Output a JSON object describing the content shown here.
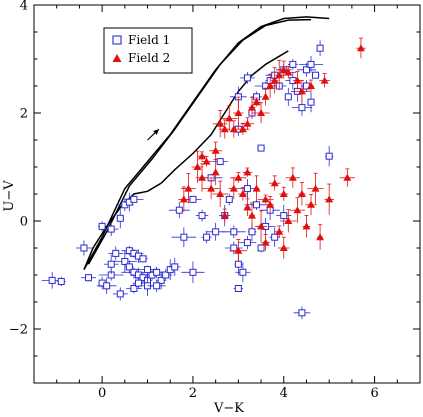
{
  "chart_data": {
    "type": "scatter",
    "title": "",
    "xlabel": "V−K",
    "ylabel": "U−V",
    "xlim": [
      -1.5,
      7
    ],
    "ylim": [
      -3,
      4
    ],
    "x_ticks": [
      0,
      2,
      4,
      6
    ],
    "y_ticks": [
      -2,
      0,
      2,
      4
    ],
    "x_tick_labels": [
      "0",
      "2",
      "4",
      "6"
    ],
    "y_tick_labels": [
      "−2",
      "0",
      "2",
      "4"
    ],
    "legend_position": "top-left",
    "colors": {
      "field1": "#2b2bd6",
      "field2": "#e01010",
      "tracks": "#000000"
    },
    "series": [
      {
        "name": "Field 1",
        "marker": "open-square",
        "color": "#2b2bd6",
        "points": [
          [
            -0.4,
            -0.5
          ],
          [
            0.0,
            -0.1
          ],
          [
            0.2,
            -0.15
          ],
          [
            0.4,
            0.05
          ],
          [
            0.5,
            0.3
          ],
          [
            0.6,
            0.35
          ],
          [
            0.7,
            0.4
          ],
          [
            0.6,
            -0.55
          ],
          [
            0.7,
            -0.6
          ],
          [
            0.8,
            -0.65
          ],
          [
            0.9,
            -0.7
          ],
          [
            0.5,
            -0.75
          ],
          [
            0.6,
            -0.85
          ],
          [
            0.7,
            -0.95
          ],
          [
            0.8,
            -1.0
          ],
          [
            0.9,
            -1.05
          ],
          [
            1.0,
            -1.1
          ],
          [
            1.1,
            -1.0
          ],
          [
            1.2,
            -0.95
          ],
          [
            1.3,
            -1.1
          ],
          [
            1.4,
            -1.0
          ],
          [
            1.5,
            -0.9
          ],
          [
            1.0,
            -1.2
          ],
          [
            0.7,
            -1.25
          ],
          [
            1.2,
            -1.2
          ],
          [
            -1.1,
            -1.1
          ],
          [
            -0.9,
            -1.12
          ],
          [
            -0.3,
            -1.05
          ],
          [
            0.0,
            -1.15
          ],
          [
            0.1,
            -1.2
          ],
          [
            0.2,
            -1.0
          ],
          [
            0.3,
            -0.6
          ],
          [
            0.2,
            -0.8
          ],
          [
            0.4,
            -1.35
          ],
          [
            0.8,
            -1.15
          ],
          [
            1.0,
            -0.9
          ],
          [
            1.6,
            -0.85
          ],
          [
            2.0,
            -0.95
          ],
          [
            1.8,
            -0.3
          ],
          [
            1.7,
            0.2
          ],
          [
            2.0,
            0.4
          ],
          [
            2.2,
            0.1
          ],
          [
            2.3,
            -0.3
          ],
          [
            2.5,
            -0.2
          ],
          [
            2.7,
            0.1
          ],
          [
            2.8,
            0.4
          ],
          [
            2.9,
            -0.5
          ],
          [
            3.0,
            -0.8
          ],
          [
            3.1,
            -0.95
          ],
          [
            3.2,
            -0.4
          ],
          [
            3.3,
            -0.2
          ],
          [
            3.4,
            0.3
          ],
          [
            3.5,
            -0.5
          ],
          [
            3.6,
            -0.1
          ],
          [
            3.7,
            0.2
          ],
          [
            3.8,
            -0.3
          ],
          [
            3.0,
            -1.25
          ],
          [
            3.5,
            1.35
          ],
          [
            3.2,
            0.6
          ],
          [
            2.4,
            0.8
          ],
          [
            2.6,
            1.1
          ],
          [
            3.0,
            1.7
          ],
          [
            3.3,
            2.0
          ],
          [
            3.4,
            2.3
          ],
          [
            3.6,
            2.5
          ],
          [
            3.7,
            2.6
          ],
          [
            3.8,
            2.7
          ],
          [
            3.9,
            2.5
          ],
          [
            4.0,
            2.8
          ],
          [
            4.1,
            2.3
          ],
          [
            4.2,
            2.6
          ],
          [
            4.3,
            2.4
          ],
          [
            4.4,
            2.1
          ],
          [
            4.5,
            2.5
          ],
          [
            4.6,
            2.2
          ],
          [
            4.7,
            2.7
          ],
          [
            4.2,
            2.9
          ],
          [
            4.8,
            3.2
          ],
          [
            3.2,
            2.65
          ],
          [
            3.0,
            2.3
          ],
          [
            4.4,
            -1.7
          ],
          [
            5.0,
            1.2
          ],
          [
            4.5,
            2.8
          ],
          [
            4.6,
            2.9
          ],
          [
            4.0,
            0.1
          ],
          [
            2.9,
            -0.2
          ]
        ]
      },
      {
        "name": "Field 2",
        "marker": "filled-triangle",
        "color": "#e01010",
        "points": [
          [
            1.8,
            0.4
          ],
          [
            1.9,
            0.6
          ],
          [
            2.1,
            1.0
          ],
          [
            2.2,
            0.8
          ],
          [
            2.3,
            1.1
          ],
          [
            2.4,
            0.6
          ],
          [
            2.5,
            1.3
          ],
          [
            2.6,
            1.8
          ],
          [
            2.7,
            1.7
          ],
          [
            2.8,
            1.9
          ],
          [
            2.9,
            1.7
          ],
          [
            3.0,
            2.0
          ],
          [
            3.1,
            1.7
          ],
          [
            3.2,
            1.8
          ],
          [
            3.3,
            2.1
          ],
          [
            3.4,
            2.2
          ],
          [
            3.5,
            2.0
          ],
          [
            3.6,
            2.3
          ],
          [
            3.7,
            2.5
          ],
          [
            3.8,
            2.6
          ],
          [
            3.9,
            2.7
          ],
          [
            4.0,
            2.8
          ],
          [
            4.1,
            2.75
          ],
          [
            4.3,
            2.6
          ],
          [
            4.4,
            2.4
          ],
          [
            4.6,
            2.5
          ],
          [
            4.9,
            2.6
          ],
          [
            5.7,
            3.2
          ],
          [
            2.2,
            1.2
          ],
          [
            2.5,
            0.9
          ],
          [
            2.9,
            0.6
          ],
          [
            3.0,
            0.8
          ],
          [
            3.1,
            0.5
          ],
          [
            3.2,
            0.9
          ],
          [
            3.4,
            0.6
          ],
          [
            3.6,
            0.4
          ],
          [
            3.8,
            0.7
          ],
          [
            4.0,
            0.5
          ],
          [
            4.2,
            0.8
          ],
          [
            4.4,
            0.5
          ],
          [
            4.7,
            0.6
          ],
          [
            5.0,
            0.4
          ],
          [
            5.4,
            0.8
          ],
          [
            2.7,
            0.1
          ],
          [
            3.3,
            0.1
          ],
          [
            3.5,
            -0.1
          ],
          [
            3.7,
            0.3
          ],
          [
            3.9,
            -0.2
          ],
          [
            4.1,
            0.0
          ],
          [
            4.3,
            0.2
          ],
          [
            4.5,
            -0.1
          ],
          [
            4.8,
            -0.3
          ],
          [
            3.0,
            -0.55
          ],
          [
            3.6,
            -0.4
          ],
          [
            4.0,
            -0.5
          ],
          [
            3.2,
            0.25
          ],
          [
            2.6,
            0.5
          ],
          [
            4.6,
            0.3
          ]
        ]
      }
    ],
    "tracks": [
      [
        [
          -0.4,
          -0.9
        ],
        [
          -0.2,
          -0.5
        ],
        [
          0.1,
          -0.1
        ],
        [
          0.4,
          0.25
        ],
        [
          0.7,
          0.5
        ],
        [
          1.0,
          0.55
        ],
        [
          1.3,
          0.7
        ],
        [
          1.6,
          0.95
        ],
        [
          2.0,
          1.25
        ],
        [
          2.4,
          1.6
        ],
        [
          2.7,
          2.0
        ],
        [
          3.0,
          2.4
        ],
        [
          3.3,
          2.7
        ],
        [
          3.6,
          2.9
        ],
        [
          3.9,
          3.05
        ],
        [
          4.1,
          3.15
        ]
      ],
      [
        [
          -0.4,
          -0.9
        ],
        [
          0.0,
          -0.3
        ],
        [
          0.5,
          0.6
        ],
        [
          1.0,
          1.1
        ],
        [
          1.5,
          1.6
        ],
        [
          2.0,
          2.2
        ],
        [
          2.5,
          2.8
        ],
        [
          3.0,
          3.3
        ],
        [
          3.5,
          3.6
        ],
        [
          4.0,
          3.75
        ],
        [
          4.5,
          3.78
        ],
        [
          5.0,
          3.75
        ]
      ],
      [
        [
          -0.3,
          -0.8
        ],
        [
          0.1,
          -0.2
        ],
        [
          0.6,
          0.65
        ],
        [
          1.1,
          1.15
        ],
        [
          1.6,
          1.7
        ],
        [
          2.1,
          2.3
        ],
        [
          2.6,
          2.9
        ],
        [
          3.1,
          3.35
        ],
        [
          3.6,
          3.62
        ],
        [
          4.1,
          3.72
        ],
        [
          4.6,
          3.73
        ]
      ]
    ],
    "arrow": {
      "from": [
        1.0,
        1.5
      ],
      "to": [
        1.25,
        1.7
      ]
    }
  }
}
